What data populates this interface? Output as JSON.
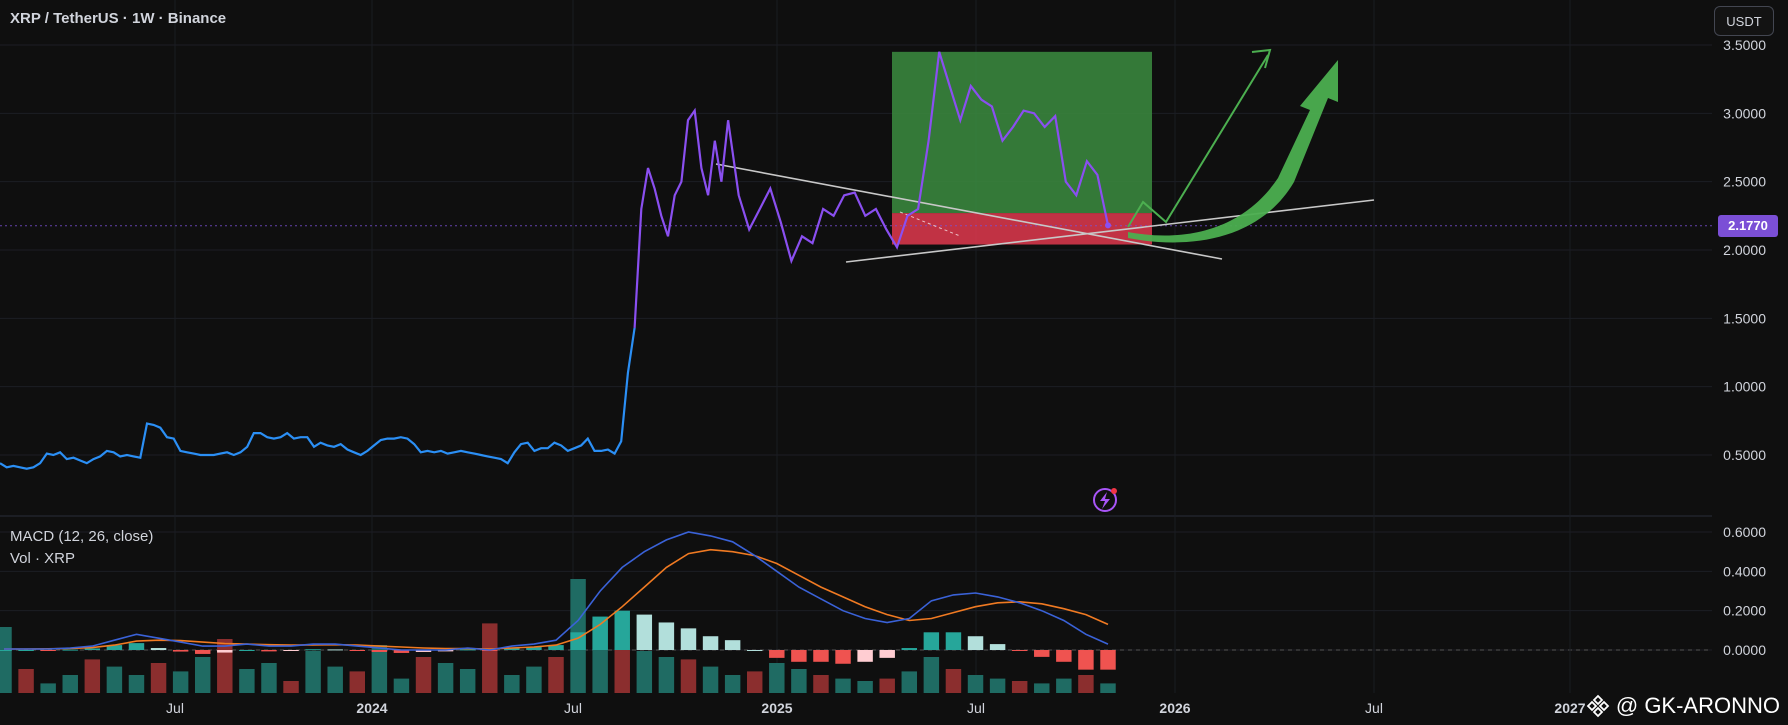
{
  "header": {
    "title": "XRP / TetherUS · 1W · Binance",
    "currency_button": "USDT"
  },
  "indicators": {
    "macd_label": "MACD (12, 26, close)",
    "vol_label": "Vol · XRP"
  },
  "last_price_tag": "2.1770",
  "watermark": {
    "text": "@ GK-ARONNO",
    "icon": "binance-diamond-icon"
  },
  "colors": {
    "price_blue": "#2b8ff5",
    "price_purple": "#8a4ff0",
    "target_zone": "#3b8c3f",
    "stop_zone": "#e0384e",
    "macd_line": "#3a62d8",
    "signal_line": "#f07a22",
    "vol_up": "#1f6b63",
    "vol_down": "#8b2e2e",
    "hist_pos_strong": "#26a69a",
    "hist_pos_weak": "#b2dfdb",
    "hist_neg_strong": "#ef5350",
    "hist_neg_weak": "#ffcdd2",
    "arrow_green": "#4caf50"
  },
  "chart_data": [
    {
      "type": "line",
      "pane": "price",
      "y_axis_ticks": [
        "3.5000",
        "3.0000",
        "2.5000",
        "2.0000",
        "1.5000",
        "1.0000",
        "0.5000"
      ],
      "ylim": [
        0.2,
        3.55
      ],
      "x_axis_ticks": [
        "Jul",
        "2024",
        "Jul",
        "2025",
        "Jul",
        "2026",
        "Jul",
        "2027"
      ],
      "series": [
        {
          "values": [
            0.44,
            0.41,
            0.42,
            0.41,
            0.4,
            0.41,
            0.44,
            0.51,
            0.5,
            0.52,
            0.47,
            0.48,
            0.46,
            0.44,
            0.47,
            0.49,
            0.53,
            0.52,
            0.49,
            0.5,
            0.49,
            0.48,
            0.73,
            0.72,
            0.7,
            0.63,
            0.62,
            0.53,
            0.52,
            0.51,
            0.5,
            0.5,
            0.5,
            0.51,
            0.52,
            0.5,
            0.52,
            0.56,
            0.66,
            0.66,
            0.63,
            0.62,
            0.63,
            0.66,
            0.62,
            0.63,
            0.63,
            0.56,
            0.59,
            0.57,
            0.56,
            0.58,
            0.54,
            0.52,
            0.5,
            0.53,
            0.57,
            0.61,
            0.62,
            0.62,
            0.63,
            0.62,
            0.58,
            0.52,
            0.53,
            0.52,
            0.53,
            0.51,
            0.52,
            0.53,
            0.52,
            0.51,
            0.5,
            0.49,
            0.48,
            0.47,
            0.44,
            0.52,
            0.58,
            0.59,
            0.53,
            0.55,
            0.55,
            0.59,
            0.57,
            0.53,
            0.55,
            0.57,
            0.62,
            0.53,
            0.53,
            0.54,
            0.51,
            0.6,
            1.1,
            1.43,
            2.3,
            2.6,
            2.45,
            2.25,
            2.1,
            2.4,
            2.5,
            2.95,
            3.02,
            2.6,
            2.4,
            2.8,
            2.5,
            2.95
          ],
          "segment": "blue-then-purple"
        },
        {
          "values": [
            2.95,
            2.4,
            2.15,
            2.3,
            2.45,
            2.2,
            1.92,
            2.1,
            2.05,
            2.3,
            2.25,
            2.4,
            2.42,
            2.25,
            2.3,
            2.15,
            2.02,
            2.25,
            2.3,
            2.8,
            3.45,
            3.2,
            2.95,
            3.2,
            3.1,
            3.05,
            2.8,
            2.9,
            3.02,
            3.0,
            2.9,
            2.98,
            2.5,
            2.4,
            2.65,
            2.55,
            2.18
          ],
          "segment": "purple"
        }
      ],
      "annotations": {
        "target_zone": [
          2.27,
          3.45
        ],
        "stop_zone": [
          2.04,
          2.27
        ],
        "entry_price": 2.27,
        "last_price": 2.177
      }
    },
    {
      "type": "bar",
      "pane": "indicator",
      "y_axis_ticks": [
        "0.6000",
        "0.4000",
        "0.2000",
        "0.0000"
      ],
      "ylim": [
        -0.2,
        0.62
      ],
      "macd_line": [
        0.005,
        0.005,
        0.005,
        0.01,
        0.02,
        0.05,
        0.08,
        0.06,
        0.04,
        0.02,
        0.02,
        0.03,
        0.02,
        0.02,
        0.03,
        0.03,
        0.02,
        0.01,
        0.0,
        0.0,
        0.0,
        0.01,
        0.0,
        0.02,
        0.03,
        0.05,
        0.15,
        0.3,
        0.42,
        0.5,
        0.56,
        0.6,
        0.58,
        0.55,
        0.48,
        0.4,
        0.32,
        0.26,
        0.2,
        0.16,
        0.14,
        0.16,
        0.25,
        0.28,
        0.29,
        0.27,
        0.24,
        0.2,
        0.15,
        0.08,
        0.03
      ],
      "signal_line": [
        0.005,
        0.005,
        0.006,
        0.008,
        0.012,
        0.025,
        0.045,
        0.05,
        0.048,
        0.04,
        0.033,
        0.03,
        0.027,
        0.025,
        0.026,
        0.027,
        0.025,
        0.02,
        0.015,
        0.01,
        0.007,
        0.007,
        0.005,
        0.01,
        0.015,
        0.025,
        0.06,
        0.13,
        0.22,
        0.32,
        0.42,
        0.49,
        0.51,
        0.5,
        0.48,
        0.44,
        0.38,
        0.32,
        0.27,
        0.22,
        0.18,
        0.15,
        0.16,
        0.19,
        0.22,
        0.24,
        0.245,
        0.235,
        0.21,
        0.18,
        0.13
      ],
      "histogram": [
        0.0,
        0.0,
        -0.001,
        0.002,
        0.008,
        0.025,
        0.035,
        0.01,
        -0.008,
        -0.02,
        -0.013,
        0.0,
        -0.007,
        -0.005,
        0.004,
        0.003,
        -0.005,
        -0.01,
        -0.015,
        -0.01,
        -0.007,
        0.003,
        -0.005,
        0.01,
        0.015,
        0.025,
        0.09,
        0.17,
        0.2,
        0.18,
        0.14,
        0.11,
        0.07,
        0.05,
        0.0,
        -0.04,
        -0.06,
        -0.06,
        -0.07,
        -0.06,
        -0.04,
        0.01,
        0.09,
        0.09,
        0.07,
        0.03,
        -0.005,
        -0.035,
        -0.06,
        -0.1,
        -0.1
      ],
      "volume": [
        0.55,
        0.2,
        0.08,
        0.15,
        0.28,
        0.22,
        0.15,
        0.25,
        0.18,
        0.3,
        0.45,
        0.2,
        0.25,
        0.1,
        0.35,
        0.22,
        0.18,
        0.4,
        0.12,
        0.3,
        0.25,
        0.2,
        0.58,
        0.15,
        0.22,
        0.3,
        0.95,
        0.6,
        0.45,
        0.35,
        0.3,
        0.28,
        0.22,
        0.15,
        0.18,
        0.25,
        0.2,
        0.15,
        0.12,
        0.1,
        0.12,
        0.18,
        0.3,
        0.2,
        0.15,
        0.12,
        0.1,
        0.08,
        0.12,
        0.15,
        0.08
      ]
    }
  ]
}
